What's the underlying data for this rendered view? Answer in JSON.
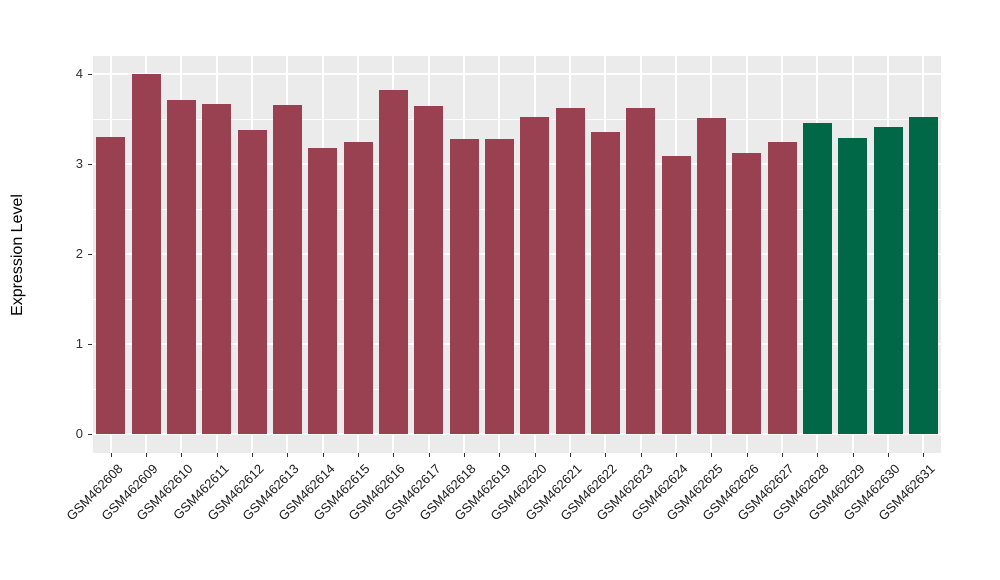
{
  "chart_data": {
    "type": "bar",
    "title": "",
    "xlabel": "",
    "ylabel": "Expression Level",
    "ylim": [
      0,
      4.2
    ],
    "yticks": [
      0,
      1,
      2,
      3,
      4
    ],
    "y_minor_ticks": [
      0.5,
      1.5,
      2.5,
      3.5
    ],
    "grid": "on",
    "legend_position": "none",
    "panel_background": "#EBEBEB",
    "gridline_color": "#FFFFFF",
    "categories": [
      "GSM462608",
      "GSM462609",
      "GSM462610",
      "GSM462611",
      "GSM462612",
      "GSM462613",
      "GSM462614",
      "GSM462615",
      "GSM462616",
      "GSM462617",
      "GSM462618",
      "GSM462619",
      "GSM462620",
      "GSM462621",
      "GSM462622",
      "GSM462623",
      "GSM462624",
      "GSM462625",
      "GSM462626",
      "GSM462627",
      "GSM462628",
      "GSM462629",
      "GSM462630",
      "GSM462631"
    ],
    "values": [
      3.3,
      4.0,
      3.71,
      3.67,
      3.38,
      3.66,
      3.18,
      3.24,
      3.82,
      3.65,
      3.28,
      3.28,
      3.52,
      3.62,
      3.36,
      3.62,
      3.09,
      3.51,
      3.12,
      3.25,
      3.46,
      3.29,
      3.41,
      3.52
    ],
    "bar_colors": [
      "#9A4151",
      "#9A4151",
      "#9A4151",
      "#9A4151",
      "#9A4151",
      "#9A4151",
      "#9A4151",
      "#9A4151",
      "#9A4151",
      "#9A4151",
      "#9A4151",
      "#9A4151",
      "#9A4151",
      "#9A4151",
      "#9A4151",
      "#9A4151",
      "#9A4151",
      "#9A4151",
      "#9A4151",
      "#9A4151",
      "#006747",
      "#006747",
      "#006747",
      "#006747"
    ],
    "group_colors": {
      "default": "#9A4151",
      "highlight": "#006747"
    }
  }
}
